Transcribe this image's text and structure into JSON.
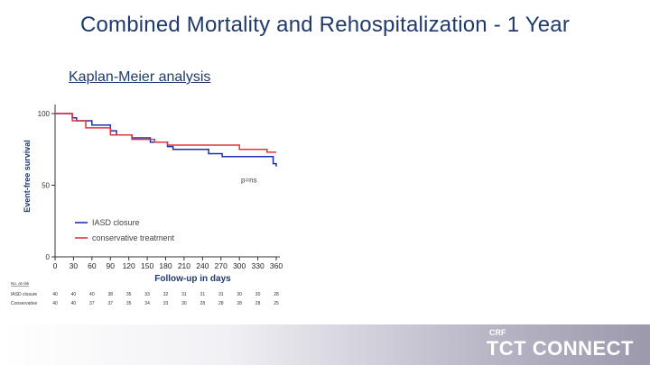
{
  "slide": {
    "title": "Combined Mortality and Rehospitalization - 1 Year",
    "subtitle": "Kaplan-Meier analysis",
    "logo_brand": "TCT CONNECT",
    "logo_org": "CRF"
  },
  "chart_data": {
    "type": "line",
    "title": "Kaplan-Meier analysis",
    "xlabel": "Follow-up in days",
    "ylabel": "Event-free survival",
    "xlim": [
      0,
      360
    ],
    "ylim": [
      0,
      100
    ],
    "x_ticks": [
      0,
      30,
      60,
      90,
      120,
      150,
      180,
      210,
      240,
      270,
      300,
      330,
      360
    ],
    "y_ticks": [
      0,
      50,
      100
    ],
    "annotation": "p=ns",
    "legend_position": "bottom-left",
    "series": [
      {
        "name": "IASD closure",
        "color": "#1f2fa8",
        "steps": [
          [
            0,
            100
          ],
          [
            28,
            100
          ],
          [
            28,
            97
          ],
          [
            35,
            97
          ],
          [
            35,
            95
          ],
          [
            60,
            95
          ],
          [
            60,
            92
          ],
          [
            90,
            92
          ],
          [
            90,
            88
          ],
          [
            100,
            88
          ],
          [
            100,
            85
          ],
          [
            125,
            85
          ],
          [
            125,
            83
          ],
          [
            155,
            83
          ],
          [
            155,
            80
          ],
          [
            183,
            80
          ],
          [
            183,
            77
          ],
          [
            192,
            77
          ],
          [
            192,
            75
          ],
          [
            250,
            75
          ],
          [
            250,
            72
          ],
          [
            272,
            72
          ],
          [
            272,
            70
          ],
          [
            355,
            70
          ],
          [
            355,
            65
          ],
          [
            360,
            65
          ],
          [
            360,
            63
          ]
        ]
      },
      {
        "name": "conservative treatment",
        "color": "#e0353d",
        "steps": [
          [
            0,
            100
          ],
          [
            28,
            100
          ],
          [
            28,
            95
          ],
          [
            50,
            95
          ],
          [
            50,
            90
          ],
          [
            90,
            90
          ],
          [
            90,
            85
          ],
          [
            125,
            85
          ],
          [
            125,
            82
          ],
          [
            162,
            82
          ],
          [
            162,
            80
          ],
          [
            183,
            80
          ],
          [
            183,
            78
          ],
          [
            300,
            78
          ],
          [
            300,
            75
          ],
          [
            345,
            75
          ],
          [
            345,
            73
          ],
          [
            360,
            73
          ]
        ]
      }
    ],
    "risk_table": {
      "header": "No. at risk",
      "rows": [
        {
          "label": "IASD closure",
          "values": [
            "40",
            "40",
            "40",
            "38",
            "35",
            "33",
            "32",
            "31",
            "31",
            "31",
            "30",
            "30",
            "28"
          ]
        },
        {
          "label": "Conservative",
          "values": [
            "40",
            "40",
            "37",
            "37",
            "35",
            "34",
            "33",
            "30",
            "28",
            "28",
            "28",
            "28",
            "25"
          ]
        }
      ]
    }
  }
}
